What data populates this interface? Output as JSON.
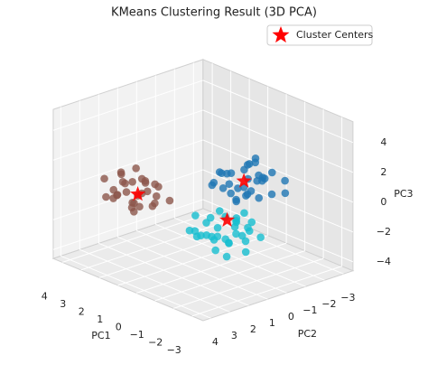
{
  "chart_data": {
    "type": "scatter3d",
    "title": "KMeans Clustering Result (3D PCA)",
    "xlabel": "PC1",
    "ylabel": "PC2",
    "zlabel": "PC3",
    "xlim": [
      -3.6,
      4.5
    ],
    "ylim": [
      -3.5,
      4.4
    ],
    "zlim": [
      -4.6,
      5.4
    ],
    "xticks": [
      {
        "value": -3,
        "label": "−3"
      },
      {
        "value": -2,
        "label": "−2"
      },
      {
        "value": -1,
        "label": "−1"
      },
      0,
      1,
      2,
      3,
      4
    ],
    "yticks": [
      {
        "value": -3,
        "label": "−3"
      },
      {
        "value": -2,
        "label": "−2"
      },
      {
        "value": -1,
        "label": "−1"
      },
      0,
      1,
      2,
      3,
      4
    ],
    "zticks": [
      {
        "value": -4,
        "label": "−4"
      },
      {
        "value": -2,
        "label": "−2"
      },
      0,
      2,
      4
    ],
    "grid": true,
    "legend": "upper right",
    "series": [
      {
        "color": "#8c564b",
        "points": [
          [
            3.5,
            1.2,
            -0.3
          ],
          [
            2.4,
            1.9,
            -1.1
          ],
          [
            3.1,
            0.8,
            -0.9
          ],
          [
            2.8,
            2.2,
            -0.2
          ],
          [
            3.9,
            1.6,
            -1.2
          ],
          [
            2.1,
            1.3,
            -0.5
          ],
          [
            3.3,
            1.9,
            0.1
          ],
          [
            2.6,
            0.9,
            -1.4
          ],
          [
            3.7,
            2.0,
            -0.6
          ],
          [
            2.9,
            1.1,
            -0.1
          ],
          [
            4.1,
            1.0,
            -0.8
          ],
          [
            2.3,
            2.4,
            -0.9
          ],
          [
            3.0,
            1.6,
            -1.3
          ],
          [
            3.6,
            0.6,
            -0.4
          ],
          [
            2.5,
            1.5,
            0.4
          ],
          [
            3.2,
            2.5,
            -0.7
          ],
          [
            4.3,
            1.9,
            -0.2
          ],
          [
            2.0,
            0.7,
            -1.0
          ],
          [
            3.4,
            1.3,
            -1.6
          ],
          [
            2.7,
            1.7,
            -0.6
          ],
          [
            3.8,
            2.3,
            -1.0
          ],
          [
            2.2,
            1.1,
            0.0
          ],
          [
            3.0,
            0.5,
            -0.5
          ],
          [
            3.5,
            1.8,
            0.6
          ],
          [
            2.6,
            2.0,
            -1.5
          ],
          [
            4.0,
            1.3,
            0.0
          ],
          [
            1.8,
            1.8,
            -0.8
          ],
          [
            3.3,
            0.9,
            -1.1
          ],
          [
            2.9,
            2.6,
            -0.3
          ],
          [
            3.1,
            1.4,
            0.9
          ]
        ]
      },
      {
        "color": "#1f77b4",
        "points": [
          [
            -1.0,
            -0.3,
            2.2
          ],
          [
            -2.1,
            0.6,
            1.5
          ],
          [
            -1.3,
            0.9,
            2.6
          ],
          [
            -0.6,
            0.1,
            1.2
          ],
          [
            -1.8,
            -0.5,
            2.0
          ],
          [
            -2.4,
            0.3,
            2.8
          ],
          [
            -1.1,
            0.5,
            1.0
          ],
          [
            -1.6,
            -0.8,
            1.7
          ],
          [
            -0.8,
            0.8,
            2.4
          ],
          [
            -2.0,
            -0.1,
            0.9
          ],
          [
            -1.4,
            1.2,
            1.8
          ],
          [
            -2.6,
            0.9,
            2.1
          ],
          [
            -0.9,
            -0.6,
            1.4
          ],
          [
            -1.7,
            0.2,
            3.1
          ],
          [
            -1.2,
            -0.2,
            0.6
          ],
          [
            -2.2,
            -0.6,
            2.5
          ],
          [
            -0.5,
            0.4,
            2.0
          ],
          [
            -1.9,
            1.0,
            1.2
          ],
          [
            -1.5,
            -0.4,
            2.9
          ],
          [
            -2.8,
            0.0,
            1.6
          ],
          [
            -0.7,
            1.1,
            1.6
          ],
          [
            -1.3,
            0.0,
            1.3
          ],
          [
            -2.3,
            1.3,
            2.3
          ],
          [
            -1.0,
            -0.9,
            2.7
          ],
          [
            -1.6,
            0.7,
            0.8
          ],
          [
            -3.0,
            -0.5,
            2.4
          ],
          [
            -0.4,
            -0.2,
            1.7
          ],
          [
            -2.0,
            0.4,
            3.4
          ],
          [
            -1.1,
            1.4,
            2.1
          ],
          [
            -1.8,
            -0.2,
            1.9
          ],
          [
            -2.5,
            -1.0,
            1.1
          ],
          [
            -3.1,
            0.8,
            3.0
          ]
        ]
      },
      {
        "color": "#17becf",
        "points": [
          [
            -0.5,
            0.2,
            -1.0
          ],
          [
            -1.6,
            1.1,
            -1.8
          ],
          [
            -0.8,
            1.5,
            -0.7
          ],
          [
            -1.9,
            0.3,
            -1.2
          ],
          [
            -0.2,
            0.9,
            -2.1
          ],
          [
            -1.3,
            -0.2,
            -1.5
          ],
          [
            -0.6,
            1.8,
            -1.6
          ],
          [
            -2.1,
            1.2,
            -0.9
          ],
          [
            -1.0,
            0.5,
            -2.4
          ],
          [
            0.1,
            0.4,
            -1.3
          ],
          [
            -1.4,
            1.6,
            -2.2
          ],
          [
            -0.9,
            -0.4,
            -0.8
          ],
          [
            -1.7,
            0.8,
            -0.5
          ],
          [
            -0.3,
            1.3,
            -1.9
          ],
          [
            -1.2,
            0.0,
            -2.0
          ],
          [
            -2.0,
            0.6,
            -1.7
          ],
          [
            -0.7,
            0.7,
            -0.3
          ],
          [
            -1.5,
            1.9,
            -1.1
          ],
          [
            0.2,
            1.1,
            -0.9
          ],
          [
            -1.1,
            -0.6,
            -1.4
          ],
          [
            -0.4,
            0.1,
            -2.6
          ],
          [
            -1.8,
            1.4,
            -2.5
          ],
          [
            -0.9,
            1.0,
            -1.2
          ],
          [
            -2.3,
            0.1,
            -1.5
          ],
          [
            -0.1,
            1.7,
            -1.5
          ],
          [
            -1.3,
            0.4,
            -0.6
          ],
          [
            -0.6,
            -0.2,
            -1.8
          ],
          [
            -1.6,
            0.2,
            -2.8
          ],
          [
            -0.8,
            2.1,
            -1.0
          ],
          [
            -1.9,
            1.0,
            -0.2
          ],
          [
            -0.5,
            0.8,
            -2.3
          ],
          [
            -1.2,
            1.3,
            -1.5
          ]
        ]
      },
      {
        "name": "Cluster Centers",
        "color": "#ff0000",
        "marker": "star",
        "points": [
          [
            2.8,
            1.6,
            -0.6
          ],
          [
            -1.5,
            0.2,
            1.9
          ],
          [
            -0.9,
            0.5,
            -0.9
          ]
        ]
      }
    ]
  }
}
